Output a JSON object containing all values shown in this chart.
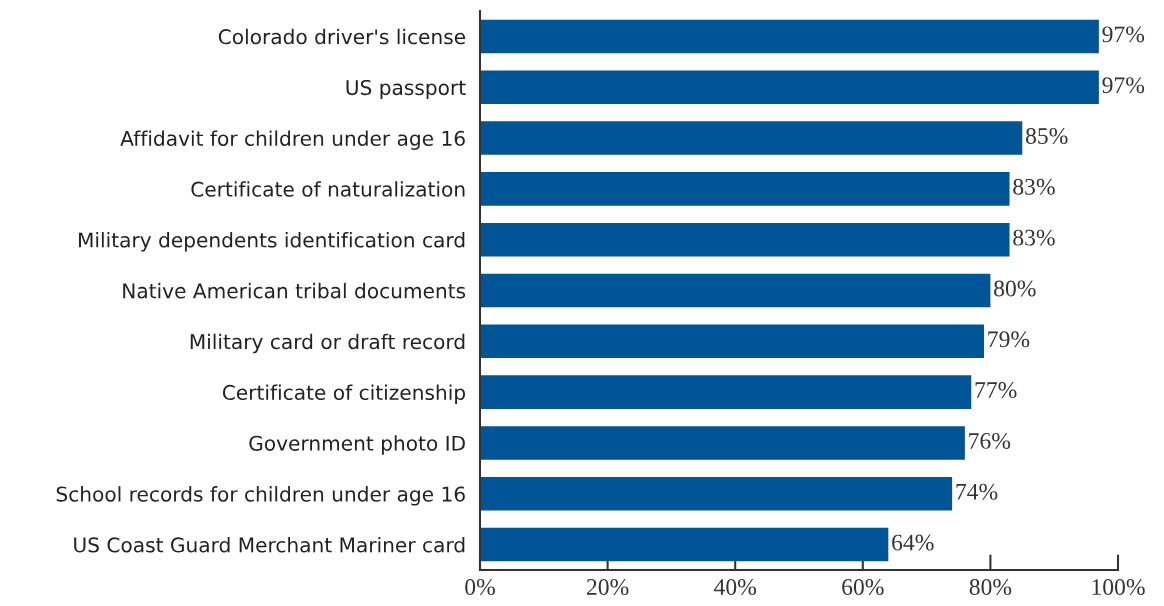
{
  "chart_data": {
    "type": "bar",
    "orientation": "horizontal",
    "categories": [
      "Colorado driver's license",
      "US passport",
      "Affidavit for children under age 16",
      "Certificate of naturalization",
      "Military dependents identification card",
      "Native American tribal documents",
      "Military card or draft record",
      "Certificate of citizenship",
      "Government photo ID",
      "School records for children under age 16",
      "US Coast Guard Merchant Mariner card"
    ],
    "values": [
      97,
      97,
      85,
      83,
      83,
      80,
      79,
      77,
      76,
      74,
      64
    ],
    "value_labels": [
      "97%",
      "97%",
      "85%",
      "83%",
      "83%",
      "80%",
      "79%",
      "77%",
      "76%",
      "74%",
      "64%"
    ],
    "color": "#005596",
    "xlim": [
      0,
      100
    ],
    "xticks": [
      {
        "value": 0,
        "label": "0%"
      },
      {
        "value": 20,
        "label": "20%"
      },
      {
        "value": 40,
        "label": "40%"
      },
      {
        "value": 60,
        "label": "60%"
      },
      {
        "value": 80,
        "label": "80%"
      },
      {
        "value": 100,
        "label": "100%"
      }
    ],
    "grid": false,
    "legend": false
  }
}
